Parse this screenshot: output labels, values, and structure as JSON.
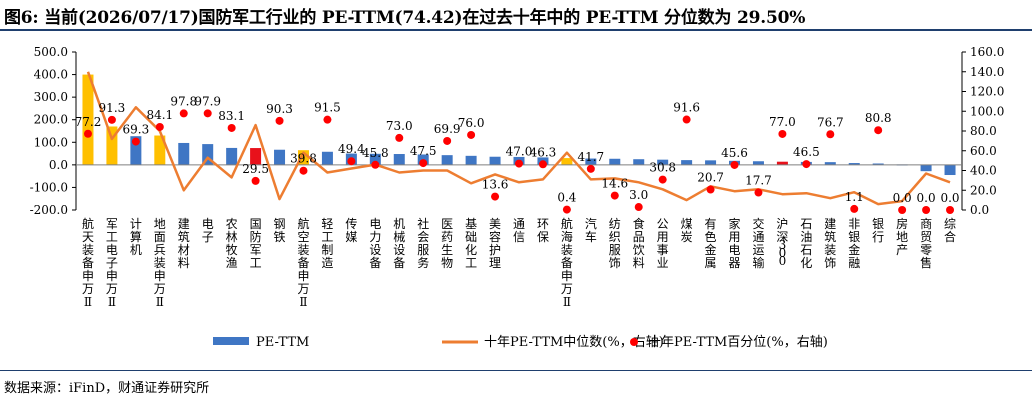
{
  "title": "图6: 当前(2026/07/17)国防军工行业的 PE-TTM(74.42)在过去十年中的 PE-TTM 分位数为 29.50%",
  "source": "数据来源：iFinD，财通证券研究所",
  "colors": {
    "bar": "#3f76c4",
    "bar_highlight_yellow": "#ffc000",
    "bar_highlight_red": "#e8111b",
    "line": "#ed7d31",
    "dot": "#ff0000",
    "title_rule": "#1f3f6e"
  },
  "chart_data": {
    "type": "bar",
    "categories": [
      "航天装备Ⅱ(申万)",
      "军工电子Ⅱ(申万)",
      "计算机",
      "地面兵装Ⅱ(申万)",
      "建筑材料",
      "电子",
      "农林牧渔",
      "国防军工",
      "钢铁",
      "航空装备Ⅱ(申万)",
      "轻工制造",
      "传媒",
      "电力设备",
      "机械设备",
      "社会服务",
      "医药生物",
      "基础化工",
      "美容护理",
      "通信",
      "环保",
      "航海装备Ⅱ(申万)",
      "汽车",
      "纺织服饰",
      "食品饮料",
      "公用事业",
      "煤炭",
      "有色金属",
      "家用电器",
      "交通运输",
      "沪深300",
      "石油石化",
      "建筑装饰",
      "非银金融",
      "银行",
      "房地产",
      "商贸零售",
      "综合"
    ],
    "category_glyphs": [
      "航天装备申万Ⅱ",
      "军工电子申万Ⅱ",
      "计算机",
      "地面兵装申万Ⅱ",
      "建筑材料",
      "电子",
      "农林牧渔",
      "国防军工",
      "钢铁",
      "航空装备申万Ⅱ",
      "轻工制造",
      "传媒",
      "电力设备",
      "机械设备",
      "社会服务",
      "医药生物",
      "基础化工",
      "美容护理",
      "通信",
      "环保",
      "航海装备申万Ⅱ",
      "汽车",
      "纺织服饰",
      "食品饮料",
      "公用事业",
      "煤炭",
      "有色金属",
      "家用电器",
      "交通运输",
      "沪深300",
      "石油石化",
      "建筑装饰",
      "非银金融",
      "银行",
      "房地产",
      "商贸零售",
      "综合"
    ],
    "series": [
      {
        "name": "PE-TTM",
        "axis": "left",
        "values": [
          400,
          170,
          127,
          130,
          97,
          92,
          75,
          74.42,
          67,
          65,
          58,
          50,
          49,
          48,
          46,
          43,
          40,
          36,
          35,
          33,
          30,
          28,
          27,
          25,
          23,
          21,
          20,
          18,
          16,
          14,
          13,
          12,
          8,
          6,
          2,
          -28,
          -45
        ],
        "highlight": {
          "0": "yellow",
          "1": "yellow",
          "3": "yellow",
          "9": "yellow",
          "20": "yellow",
          "7": "red",
          "29": "red"
        }
      },
      {
        "name": "十年PE-TTM中位数(%，右轴)",
        "axis": "right",
        "values": [
          140,
          72,
          104,
          80,
          20,
          53,
          33,
          86,
          11,
          58,
          38,
          42,
          46,
          38,
          40,
          40,
          27,
          36,
          28,
          31,
          58,
          31,
          32,
          28,
          21,
          10,
          24,
          19,
          21,
          16,
          17,
          12,
          18,
          6,
          9,
          37,
          28
        ]
      },
      {
        "name": "十年PE-TTM百分位(%，右轴)",
        "axis": "right",
        "values": [
          77.2,
          91.3,
          69.3,
          84.1,
          97.8,
          97.9,
          83.1,
          29.5,
          90.3,
          39.8,
          91.5,
          49.4,
          45.8,
          73.0,
          47.5,
          69.9,
          76.0,
          13.6,
          47.0,
          46.3,
          0.4,
          41.7,
          14.6,
          3.0,
          30.8,
          91.6,
          20.7,
          45.6,
          17.7,
          77.0,
          46.5,
          76.7,
          1.1,
          80.8,
          0.0,
          0.0,
          0.0
        ],
        "labels": [
          "77.2",
          "91.3",
          "69.3",
          "84.1",
          "97.8",
          "97.9",
          "83.1",
          "29.5",
          "90.3",
          "39.8",
          "91.5",
          "49.4",
          "45.8",
          "73.0",
          "47.5",
          "69.9",
          "76.0",
          "13.6",
          "47.0",
          "46.3",
          "0.4",
          "41.7",
          "14.6",
          "3.0",
          "30.8",
          "91.6",
          "20.7",
          "45.6",
          "17.7",
          "77.0",
          "46.5",
          "76.7",
          "1.1",
          "80.8",
          "0.0",
          "0.0",
          "0.0"
        ]
      }
    ],
    "y_left": {
      "min": -200,
      "max": 500,
      "ticks": [
        "-200.0",
        "-100.0",
        "0.0",
        "100.0",
        "200.0",
        "300.0",
        "400.0",
        "500.0"
      ]
    },
    "y_right": {
      "min": 0,
      "max": 160,
      "ticks": [
        "0.0",
        "20.0",
        "40.0",
        "60.0",
        "80.0",
        "100.0",
        "120.0",
        "140.0",
        "160.0"
      ]
    },
    "legend": {
      "position": "bottom",
      "items": [
        "PE-TTM",
        "十年PE-TTM中位数(%，右轴)",
        "十年PE-TTM百分位(%，右轴)"
      ]
    },
    "grid": false
  }
}
